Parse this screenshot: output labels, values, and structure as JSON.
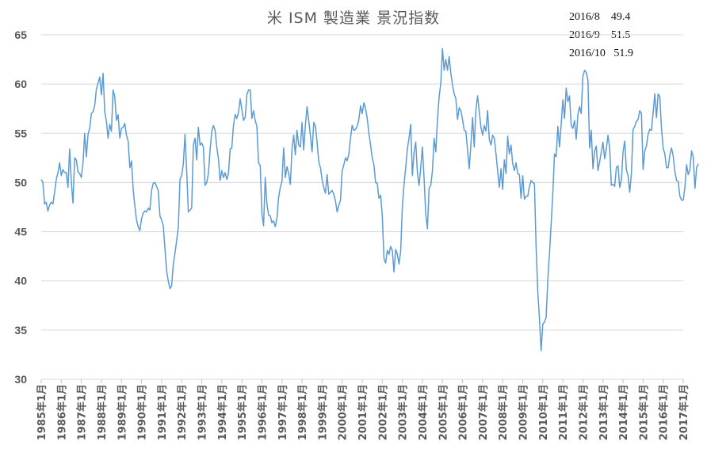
{
  "chart_data": {
    "type": "line",
    "title": "米  ISM 製造業  景況指数",
    "xlabel": "",
    "ylabel": "",
    "ylim": [
      30,
      65
    ],
    "yticks": [
      30,
      35,
      40,
      45,
      50,
      55,
      60,
      65
    ],
    "grid": true,
    "legend": "none",
    "x_start": "1985-01",
    "x_tick_labels": [
      "1985年1月",
      "1986年1月",
      "1987年1月",
      "1988年1月",
      "1989年1月",
      "1990年1月",
      "1991年1月",
      "1992年1月",
      "1993年1月",
      "1994年1月",
      "1995年1月",
      "1996年1月",
      "1997年1月",
      "1998年1月",
      "1999年1月",
      "2000年1月",
      "2001年1月",
      "2002年1月",
      "2003年1月",
      "2004年1月",
      "2005年1月",
      "2006年1月",
      "2007年1月",
      "2008年1月",
      "2009年1月",
      "2010年1月",
      "2011年1月",
      "2012年1月",
      "2013年1月",
      "2014年1月",
      "2015年1月",
      "2016年1月",
      "2017年1月"
    ],
    "annotations": [
      "2016/8    49.4",
      "2016/9    51.5",
      "2016/10   51.9"
    ],
    "colors": {
      "line": "#5B9BD5",
      "grid": "#D9D9D9",
      "axis_text": "#595959"
    },
    "series": [
      {
        "values": [
          50.3,
          50.0,
          47.8,
          48.0,
          47.1,
          47.7,
          48.0,
          47.8,
          49.0,
          50.3,
          51.0,
          52.0,
          50.7,
          51.3,
          51.0,
          51.0,
          49.5,
          53.4,
          50.1,
          47.9,
          52.5,
          52.3,
          51.1,
          50.9,
          50.5,
          52.0,
          55.0,
          52.6,
          54.9,
          55.5,
          57.0,
          57.2,
          57.8,
          59.5,
          60.1,
          60.7,
          58.9,
          61.1,
          57.2,
          56.2,
          54.5,
          55.9,
          55.2,
          59.4,
          58.7,
          56.3,
          56.9,
          54.5,
          55.5,
          55.6,
          56.0,
          54.8,
          54.2,
          51.5,
          52.2,
          49.3,
          47.6,
          46.2,
          45.5,
          45.1,
          46.3,
          46.9,
          47.1,
          47.0,
          47.4,
          47.2,
          49.2,
          49.9,
          50.0,
          49.6,
          49.2,
          46.6,
          46.2,
          45.6,
          43.3,
          41.0,
          40.0,
          39.2,
          39.5,
          41.7,
          42.8,
          44.1,
          45.4,
          50.3,
          50.7,
          51.9,
          54.9,
          51.2,
          47.0,
          47.2,
          47.4,
          53.8,
          54.5,
          52.3,
          55.6,
          53.8,
          54.0,
          53.6,
          49.7,
          50.0,
          50.9,
          53.3,
          55.2,
          55.8,
          55.3,
          53.6,
          52.4,
          50.2,
          51.2,
          50.5,
          51.0,
          50.3,
          50.9,
          53.4,
          53.5,
          55.8,
          56.9,
          56.5,
          57.1,
          58.5,
          57.4,
          56.3,
          56.6,
          58.9,
          59.4,
          59.4,
          56.5,
          57.3,
          56.3,
          55.7,
          52.0,
          51.7,
          46.8,
          45.6,
          50.5,
          47.8,
          46.7,
          46.6,
          45.9,
          46.1,
          45.5,
          46.4,
          48.5,
          49.5,
          50.1,
          53.5,
          50.5,
          51.6,
          50.9,
          49.8,
          53.4,
          54.8,
          52.8,
          55.3,
          53.8,
          53.6,
          56.1,
          53.3,
          55.8,
          57.7,
          56.3,
          54.8,
          53.1,
          56.1,
          55.7,
          54.1,
          52.1,
          51.5,
          50.3,
          49.5,
          48.9,
          50.8,
          48.8,
          49.0,
          49.2,
          48.8,
          48.1,
          47.0,
          47.7,
          48.2,
          51.2,
          51.8,
          52.5,
          52.2,
          52.9,
          54.5,
          55.8,
          55.3,
          55.4,
          55.7,
          56.4,
          57.8,
          57.0,
          58.1,
          57.5,
          56.5,
          55.0,
          53.8,
          52.5,
          51.8,
          50.0,
          49.9,
          48.4,
          48.7,
          46.6,
          42.3,
          41.8,
          43.1,
          42.7,
          43.5,
          43.1,
          40.9,
          43.2,
          42.7,
          41.7,
          43.0,
          47.5,
          49.8,
          51.5,
          53.4,
          54.5,
          55.9,
          50.7,
          53.1,
          54.1,
          51.0,
          49.7,
          51.5,
          53.6,
          50.4,
          46.8,
          45.3,
          49.4,
          49.7,
          51.2,
          54.5,
          53.1,
          56.4,
          58.7,
          60.1,
          63.6,
          61.4,
          62.5,
          61.4,
          62.8,
          61.1,
          59.9,
          59.0,
          58.5,
          56.4,
          57.6,
          57.3,
          56.4,
          55.3,
          55.2,
          53.3,
          51.4,
          53.8,
          56.6,
          53.6,
          57.4,
          58.8,
          57.2,
          55.6,
          54.8,
          55.8,
          55.2,
          57.3,
          54.4,
          53.8,
          54.8,
          54.5,
          52.9,
          51.2,
          49.5,
          51.4,
          49.3,
          52.3,
          50.9,
          54.7,
          52.9,
          53.8,
          51.9,
          51.2,
          52.0,
          50.9,
          50.8,
          48.4,
          50.7,
          48.3,
          48.6,
          48.6,
          49.6,
          50.2,
          50.0,
          49.9,
          43.5,
          38.9,
          36.2,
          32.9,
          35.6,
          35.8,
          36.3,
          40.1,
          42.8,
          45.8,
          48.9,
          52.9,
          52.6,
          55.7,
          53.6,
          55.9,
          58.4,
          56.5,
          59.6,
          58.2,
          58.8,
          55.8,
          55.5,
          56.3,
          54.4,
          56.9,
          57.7,
          57.0,
          60.8,
          61.4,
          61.2,
          60.4,
          53.5,
          55.3,
          51.4,
          53.2,
          53.7,
          51.2,
          52.1,
          53.1,
          54.1,
          52.4,
          53.4,
          54.8,
          53.5,
          49.7,
          49.8,
          49.6,
          51.5,
          51.7,
          49.5,
          50.2,
          53.1,
          54.2,
          51.3,
          50.7,
          49.0,
          50.9,
          55.4,
          55.7,
          56.2,
          56.4,
          57.3,
          57.0,
          51.3,
          53.2,
          53.7,
          54.9,
          55.4,
          55.3,
          57.1,
          59.0,
          56.6,
          59.0,
          58.7,
          55.5,
          53.5,
          52.9,
          51.5,
          51.5,
          52.8,
          53.5,
          52.7,
          51.1,
          50.2,
          50.1,
          48.6,
          48.2,
          48.2,
          49.5,
          51.8,
          50.8,
          51.3,
          53.2,
          52.6,
          49.4,
          51.5,
          51.9
        ]
      }
    ],
    "ui_fixes_note": ""
  }
}
